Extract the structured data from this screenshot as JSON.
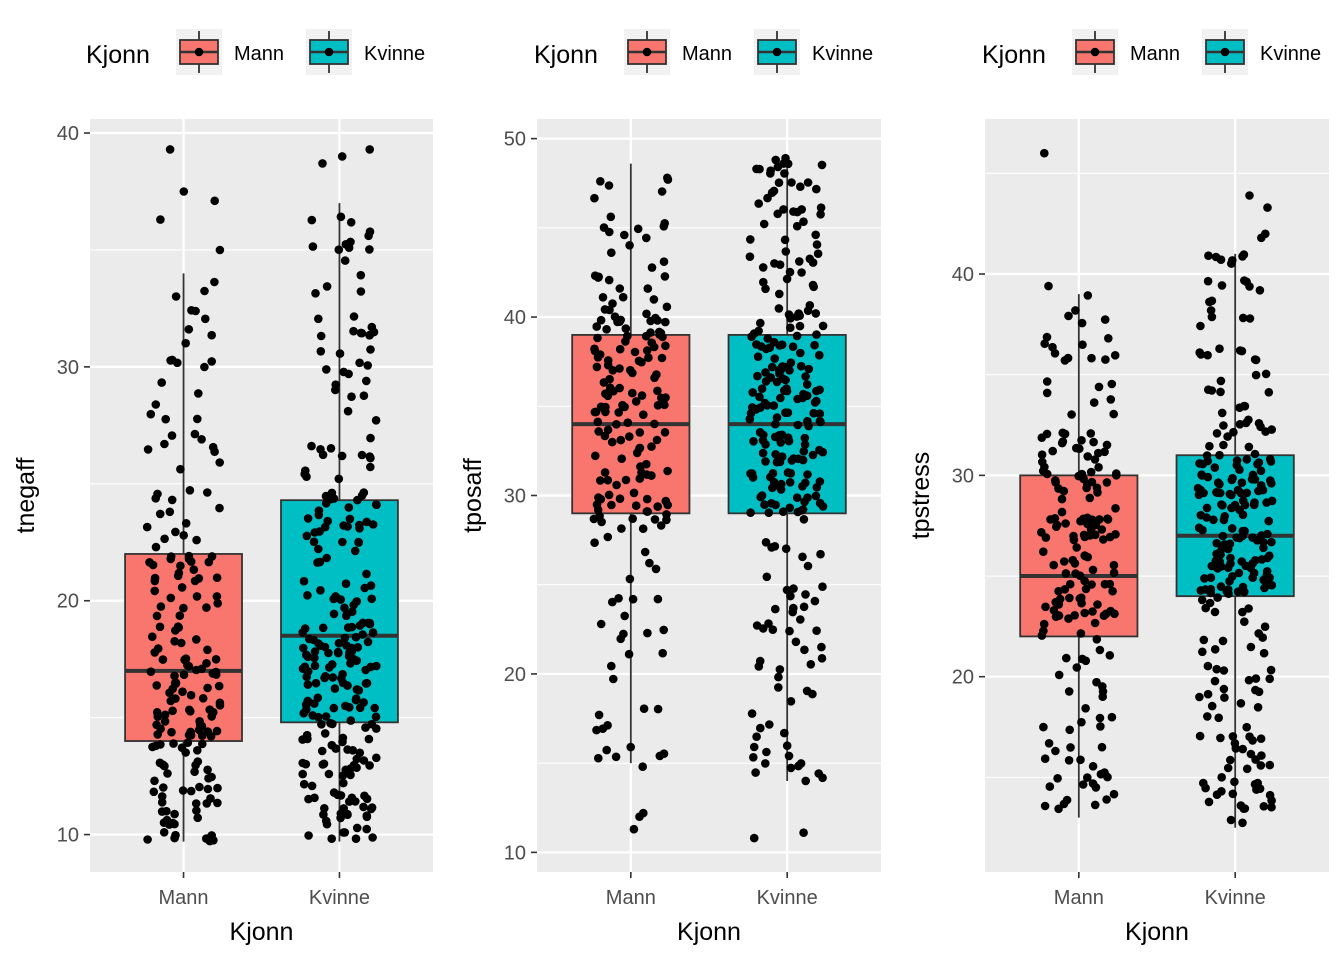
{
  "chart_data": [
    {
      "type": "box",
      "xlabel": "Kjonn",
      "ylabel": "tnegaff",
      "categories": [
        "Mann",
        "Kvinne"
      ],
      "ylim": [
        8.4,
        40.6
      ],
      "yticks": [
        10,
        20,
        30,
        40
      ],
      "ytick_labels": [
        "10",
        "20",
        "30",
        "40"
      ],
      "legend": {
        "title": "Kjonn",
        "entries": [
          "Mann",
          "Kvinne"
        ],
        "position": "top"
      },
      "series": [
        {
          "name": "Mann",
          "color": "#F8766D",
          "whisker_low": 9.7,
          "q1": 14,
          "median": 17,
          "q3": 22,
          "whisker_high": 34,
          "outliers": [
            35,
            36.3,
            37.1,
            37.5,
            39.3
          ],
          "n_points": 190
        },
        {
          "name": "Kvinne",
          "color": "#00BFC4",
          "whisker_low": 9.7,
          "q1": 14.8,
          "median": 18.5,
          "q3": 24.3,
          "whisker_high": 37,
          "outliers": [
            38.7,
            39,
            39.3
          ],
          "n_points": 260
        }
      ]
    },
    {
      "type": "box",
      "xlabel": "Kjonn",
      "ylabel": "tposaff",
      "categories": [
        "Mann",
        "Kvinne"
      ],
      "ylim": [
        8.9,
        51.1
      ],
      "yticks": [
        10,
        20,
        30,
        40,
        50
      ],
      "ytick_labels": [
        "10",
        "20",
        "30",
        "40",
        "50"
      ],
      "legend": {
        "title": "Kjonn",
        "entries": [
          "Mann",
          "Kvinne"
        ],
        "position": "top"
      },
      "series": [
        {
          "name": "Mann",
          "color": "#F8766D",
          "whisker_low": 15,
          "q1": 29,
          "median": 34,
          "q3": 39,
          "whisker_high": 48.6,
          "outliers": [
            11.3,
            12,
            12.2,
            14.8
          ],
          "n_points": 190
        },
        {
          "name": "Kvinne",
          "color": "#00BFC4",
          "whisker_low": 14,
          "q1": 29,
          "median": 34,
          "q3": 39,
          "whisker_high": 49,
          "outliers": [
            10.8,
            11.1
          ],
          "n_points": 260
        }
      ]
    },
    {
      "type": "box",
      "xlabel": "Kjonn",
      "ylabel": "tpstress",
      "categories": [
        "Mann",
        "Kvinne"
      ],
      "ylim": [
        10.3,
        47.7
      ],
      "yticks": [
        20,
        30,
        40
      ],
      "ytick_labels": [
        "20",
        "30",
        "40"
      ],
      "legend": {
        "title": "Kjonn",
        "entries": [
          "Mann",
          "Kvinne"
        ],
        "position": "top"
      },
      "series": [
        {
          "name": "Mann",
          "color": "#F8766D",
          "whisker_low": 13,
          "q1": 22,
          "median": 25,
          "q3": 30,
          "whisker_high": 39,
          "outliers": [
            39.4,
            46
          ],
          "n_points": 190
        },
        {
          "name": "Kvinne",
          "color": "#00BFC4",
          "whisker_low": 12.5,
          "q1": 24,
          "median": 27,
          "q3": 31,
          "whisker_high": 41,
          "outliers": [
            41.8,
            42,
            43.3,
            43.9
          ],
          "n_points": 260
        }
      ]
    }
  ]
}
